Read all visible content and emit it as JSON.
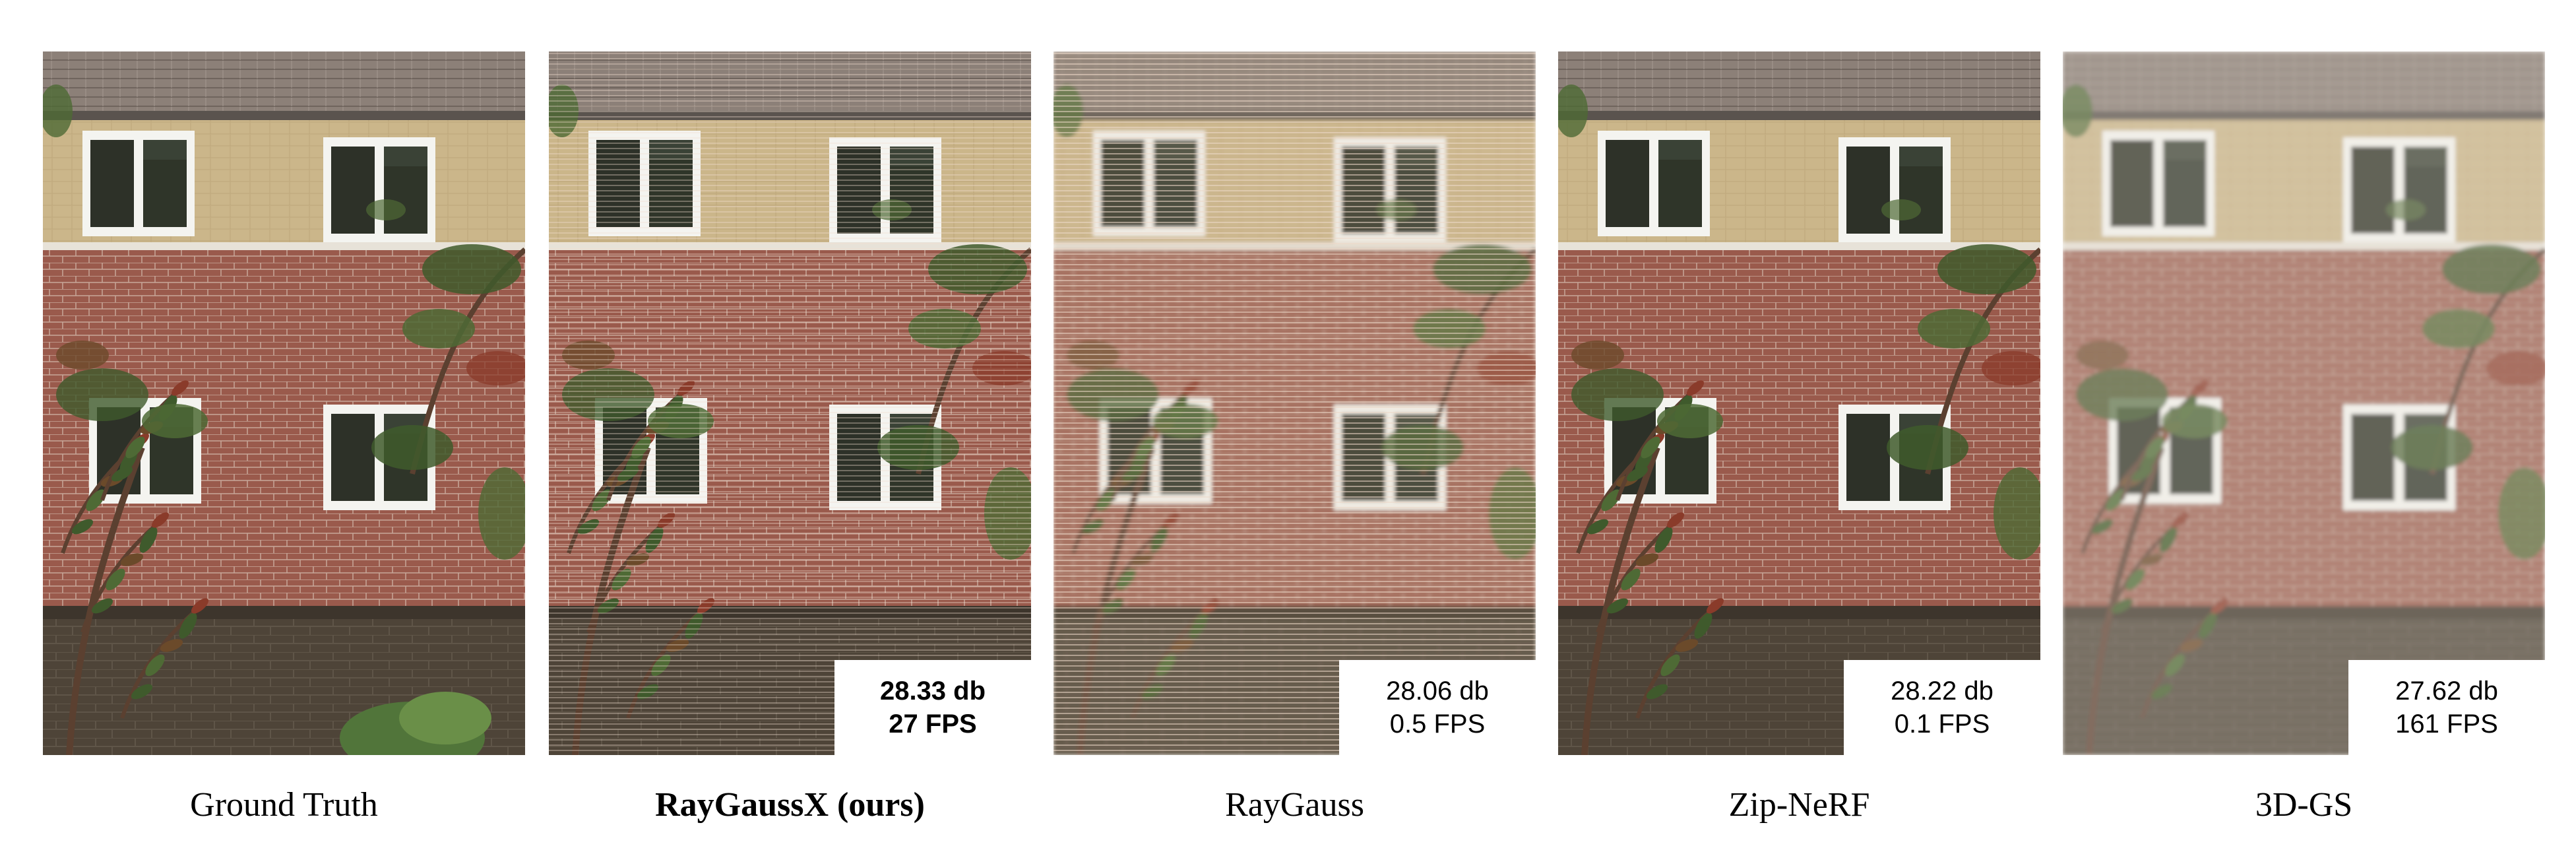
{
  "figure": {
    "panels": [
      {
        "method": "Ground Truth",
        "psnr": "",
        "fps": "",
        "highlight": false,
        "quality": "sharp"
      },
      {
        "method": "RayGaussX (ours)",
        "psnr": "28.33 db",
        "fps": "27 FPS",
        "highlight": true,
        "quality": "slight-streaks"
      },
      {
        "method": "RayGauss",
        "psnr": "28.06 db",
        "fps": "0.5 FPS",
        "highlight": false,
        "quality": "blurry-streaks"
      },
      {
        "method": "Zip-NeRF",
        "psnr": "28.22 db",
        "fps": "0.1 FPS",
        "highlight": false,
        "quality": "sharp"
      },
      {
        "method": "3D-GS",
        "psnr": "27.62 db",
        "fps": "161 FPS",
        "highlight": false,
        "quality": "faded"
      }
    ],
    "colors": {
      "brick": "#9a5a4c",
      "upper_wall": "#cbb68a",
      "roof": "#8c8078",
      "garden_wall": "#4e4438",
      "foliage": "#3f5a2c",
      "window_frame": "#f4f4f0"
    }
  }
}
